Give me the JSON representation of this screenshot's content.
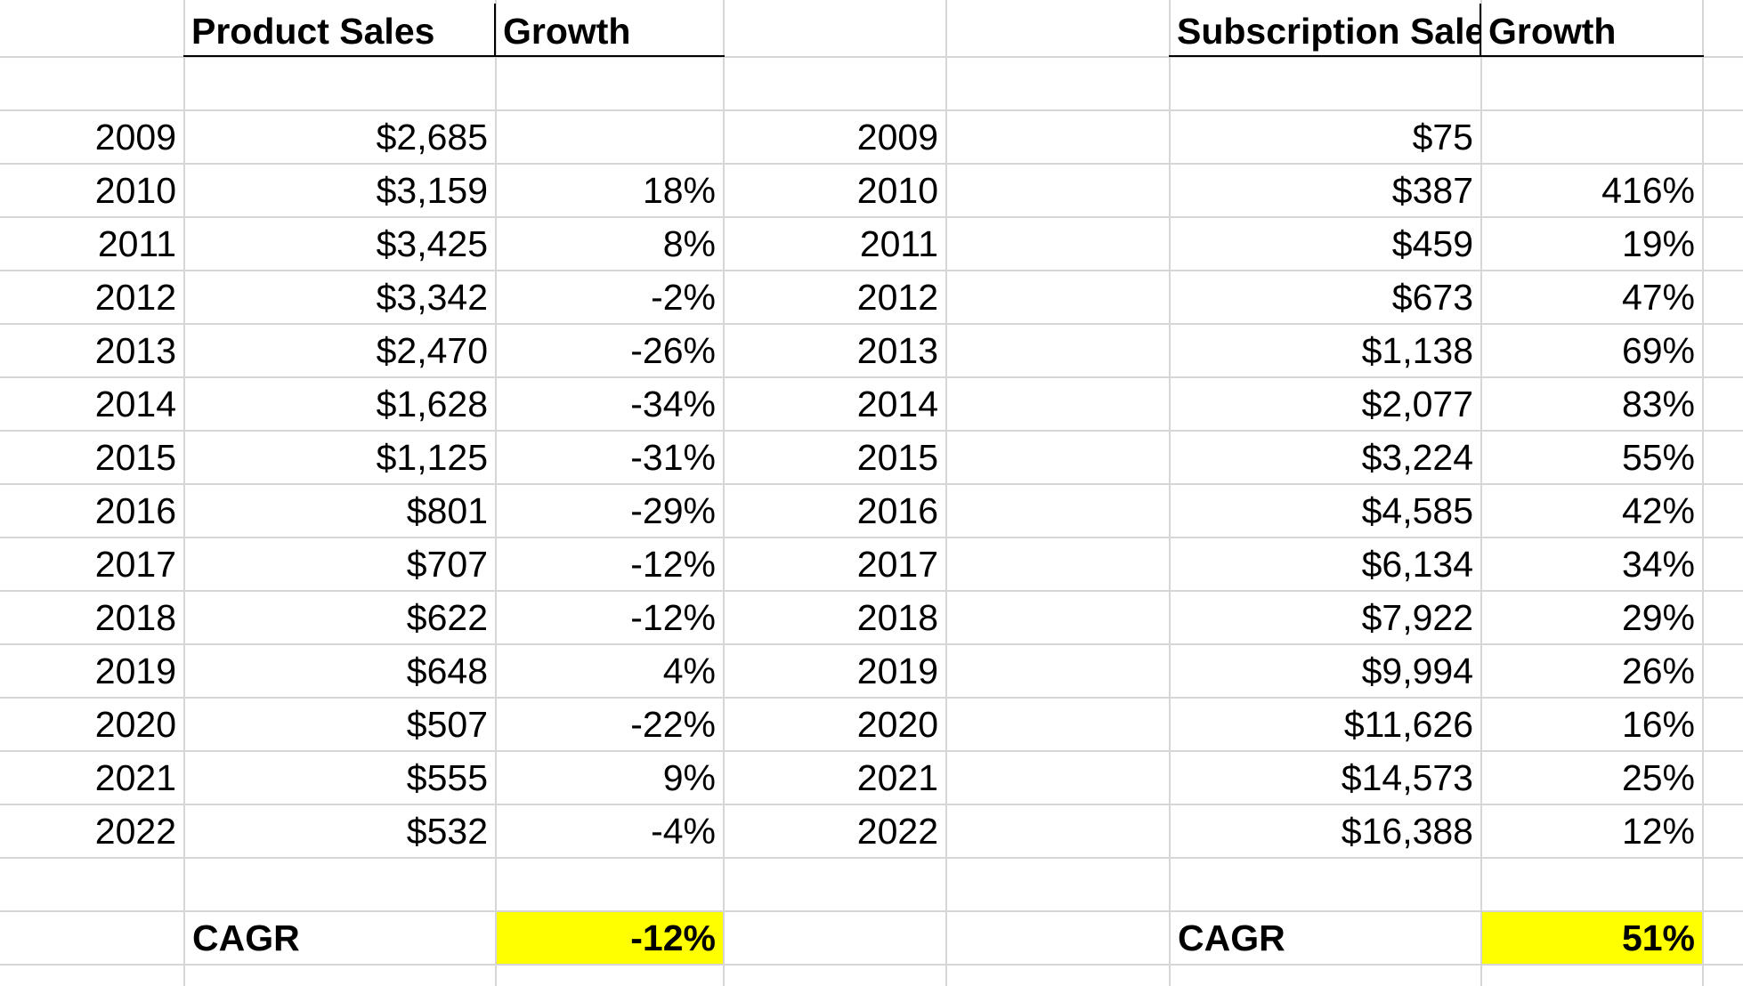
{
  "product": {
    "headers": {
      "sales": "Product Sales",
      "growth": "Growth"
    },
    "rows": [
      {
        "year": "2009",
        "sales": "$2,685",
        "growth": ""
      },
      {
        "year": "2010",
        "sales": "$3,159",
        "growth": "18%"
      },
      {
        "year": "2011",
        "sales": "$3,425",
        "growth": "8%"
      },
      {
        "year": "2012",
        "sales": "$3,342",
        "growth": "-2%"
      },
      {
        "year": "2013",
        "sales": "$2,470",
        "growth": "-26%"
      },
      {
        "year": "2014",
        "sales": "$1,628",
        "growth": "-34%"
      },
      {
        "year": "2015",
        "sales": "$1,125",
        "growth": "-31%"
      },
      {
        "year": "2016",
        "sales": "$801",
        "growth": "-29%"
      },
      {
        "year": "2017",
        "sales": "$707",
        "growth": "-12%"
      },
      {
        "year": "2018",
        "sales": "$622",
        "growth": "-12%"
      },
      {
        "year": "2019",
        "sales": "$648",
        "growth": "4%"
      },
      {
        "year": "2020",
        "sales": "$507",
        "growth": "-22%"
      },
      {
        "year": "2021",
        "sales": "$555",
        "growth": "9%"
      },
      {
        "year": "2022",
        "sales": "$532",
        "growth": "-4%"
      }
    ],
    "cagr": {
      "label": "CAGR",
      "value": "-12%"
    }
  },
  "subscription": {
    "headers": {
      "sales": "Subscription Sales",
      "growth": "Growth"
    },
    "rows": [
      {
        "year": "2009",
        "sales": "$75",
        "growth": ""
      },
      {
        "year": "2010",
        "sales": "$387",
        "growth": "416%"
      },
      {
        "year": "2011",
        "sales": "$459",
        "growth": "19%"
      },
      {
        "year": "2012",
        "sales": "$673",
        "growth": "47%"
      },
      {
        "year": "2013",
        "sales": "$1,138",
        "growth": "69%"
      },
      {
        "year": "2014",
        "sales": "$2,077",
        "growth": "83%"
      },
      {
        "year": "2015",
        "sales": "$3,224",
        "growth": "55%"
      },
      {
        "year": "2016",
        "sales": "$4,585",
        "growth": "42%"
      },
      {
        "year": "2017",
        "sales": "$6,134",
        "growth": "34%"
      },
      {
        "year": "2018",
        "sales": "$7,922",
        "growth": "29%"
      },
      {
        "year": "2019",
        "sales": "$9,994",
        "growth": "26%"
      },
      {
        "year": "2020",
        "sales": "$11,626",
        "growth": "16%"
      },
      {
        "year": "2021",
        "sales": "$14,573",
        "growth": "25%"
      },
      {
        "year": "2022",
        "sales": "$16,388",
        "growth": "12%"
      }
    ],
    "cagr": {
      "label": "CAGR",
      "value": "51%"
    }
  },
  "colors": {
    "gridline": "#d6d6d6",
    "highlight": "#ffff00",
    "text": "#000000",
    "header_border": "#000000"
  }
}
